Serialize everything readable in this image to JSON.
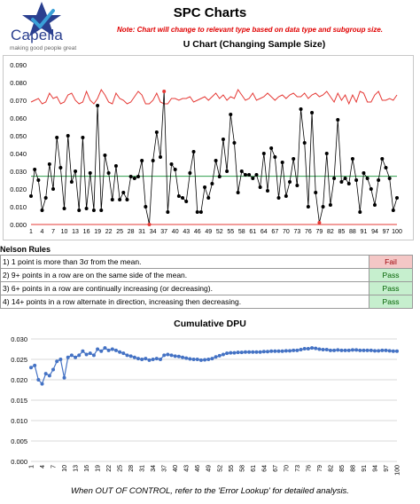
{
  "brand": {
    "name": "Capella",
    "tagline": "making good people great",
    "colors": {
      "star": "#2a3f8f",
      "check": "#3aa0d8"
    }
  },
  "header": {
    "title": "SPC Charts",
    "note": "Note: Chart will change to relevant type based on data type and subgroup size.",
    "chart_title": "U Chart (Changing Sample Size)"
  },
  "colors": {
    "ucl": "#e53935",
    "center": "#2e9e4b",
    "data": "#000000",
    "cumulative": "#4472c4",
    "fail_bg": "#f4c7c6",
    "pass_bg": "#c6efce"
  },
  "nelson": {
    "title": "Nelson Rules",
    "rules": [
      {
        "text": "1) 1 point is more than 3σ from the mean.",
        "result": "Fail"
      },
      {
        "text": "2) 9+ points in a row are on the same side of the mean.",
        "result": "Pass"
      },
      {
        "text": "3) 6+ points in a row are continually increasing (or decreasing).",
        "result": "Pass"
      },
      {
        "text": "4) 14+ points in a row alternate in direction, increasing then decreasing.",
        "result": "Pass"
      }
    ]
  },
  "cumulative_title": "Cumulative DPU",
  "footer": "When OUT OF CONTROL, refer to the 'Error Lookup' for detailed analysis.",
  "chart_data": [
    {
      "type": "line",
      "title": "U Chart (Changing Sample Size)",
      "xlabel": "",
      "ylabel": "",
      "x": [
        1,
        2,
        3,
        4,
        5,
        6,
        7,
        8,
        9,
        10,
        11,
        12,
        13,
        14,
        15,
        16,
        17,
        18,
        19,
        20,
        21,
        22,
        23,
        24,
        25,
        26,
        27,
        28,
        29,
        30,
        31,
        32,
        33,
        34,
        35,
        36,
        37,
        38,
        39,
        40,
        41,
        42,
        43,
        44,
        45,
        46,
        47,
        48,
        49,
        50,
        51,
        52,
        53,
        54,
        55,
        56,
        57,
        58,
        59,
        60,
        61,
        62,
        63,
        64,
        65,
        66,
        67,
        68,
        69,
        70,
        71,
        72,
        73,
        74,
        75,
        76,
        77,
        78,
        79,
        80,
        81,
        82,
        83,
        84,
        85,
        86,
        87,
        88,
        89,
        90,
        91,
        92,
        93,
        94,
        95,
        96,
        97,
        98,
        99,
        100
      ],
      "x_tick_labels": [
        "1",
        "4",
        "7",
        "10",
        "13",
        "16",
        "19",
        "22",
        "25",
        "28",
        "31",
        "34",
        "37",
        "40",
        "43",
        "46",
        "49",
        "52",
        "55",
        "58",
        "61",
        "64",
        "67",
        "70",
        "73",
        "76",
        "79",
        "82",
        "85",
        "88",
        "91",
        "94",
        "97",
        "100"
      ],
      "ylim": [
        0,
        0.09
      ],
      "y_ticks": [
        "0.000",
        "0.010",
        "0.020",
        "0.030",
        "0.040",
        "0.050",
        "0.060",
        "0.070",
        "0.080",
        "0.090"
      ],
      "grid": false,
      "series": [
        {
          "role": "data",
          "marker": "circle",
          "values": [
            0.016,
            0.031,
            0.025,
            0.008,
            0.015,
            0.034,
            0.02,
            0.049,
            0.032,
            0.009,
            0.05,
            0.024,
            0.03,
            0.008,
            0.049,
            0.009,
            0.029,
            0.008,
            0.067,
            0.008,
            0.039,
            0.029,
            0.014,
            0.033,
            0.014,
            0.018,
            0.014,
            0.027,
            0.026,
            0.027,
            0.036,
            0.01,
            0.0,
            0.036,
            0.052,
            0.038,
            0.075,
            0.007,
            0.034,
            0.031,
            0.016,
            0.015,
            0.013,
            0.029,
            0.041,
            0.007,
            0.007,
            0.021,
            0.015,
            0.023,
            0.036,
            0.027,
            0.048,
            0.03,
            0.062,
            0.046,
            0.018,
            0.03,
            0.028,
            0.028,
            0.026,
            0.028,
            0.021,
            0.04,
            0.019,
            0.043,
            0.038,
            0.015,
            0.035,
            0.016,
            0.024,
            0.037,
            0.022,
            0.065,
            0.046,
            0.01,
            0.063,
            0.018,
            0.001,
            0.01,
            0.04,
            0.011,
            0.026,
            0.059,
            0.024,
            0.026,
            0.023,
            0.037,
            0.025,
            0.007,
            0.029,
            0.026,
            0.02,
            0.011,
            0.025,
            0.037,
            0.032,
            0.026,
            0.008,
            0.015
          ]
        },
        {
          "role": "ucl",
          "values": [
            0.069,
            0.07,
            0.071,
            0.068,
            0.069,
            0.074,
            0.071,
            0.072,
            0.068,
            0.069,
            0.073,
            0.074,
            0.07,
            0.068,
            0.069,
            0.075,
            0.07,
            0.068,
            0.071,
            0.076,
            0.073,
            0.069,
            0.068,
            0.074,
            0.071,
            0.07,
            0.068,
            0.069,
            0.072,
            0.075,
            0.073,
            0.068,
            0.068,
            0.07,
            0.074,
            0.069,
            0.068,
            0.068,
            0.071,
            0.071,
            0.07,
            0.071,
            0.071,
            0.072,
            0.069,
            0.07,
            0.071,
            0.072,
            0.07,
            0.072,
            0.074,
            0.071,
            0.073,
            0.07,
            0.072,
            0.071,
            0.076,
            0.073,
            0.07,
            0.071,
            0.074,
            0.07,
            0.071,
            0.072,
            0.074,
            0.072,
            0.07,
            0.072,
            0.073,
            0.071,
            0.073,
            0.074,
            0.072,
            0.072,
            0.074,
            0.071,
            0.073,
            0.074,
            0.072,
            0.073,
            0.075,
            0.072,
            0.069,
            0.074,
            0.07,
            0.073,
            0.068,
            0.073,
            0.069,
            0.075,
            0.074,
            0.069,
            0.069,
            0.073,
            0.075,
            0.07,
            0.07,
            0.071,
            0.07,
            0.073
          ]
        },
        {
          "role": "center",
          "values_constant": 0.0272
        }
      ]
    },
    {
      "type": "line",
      "title": "Cumulative DPU",
      "xlabel": "",
      "ylabel": "",
      "ylim": [
        0,
        0.03
      ],
      "y_ticks": [
        "0.000",
        "0.005",
        "0.010",
        "0.015",
        "0.020",
        "0.025",
        "0.030"
      ],
      "x_tick_labels": [
        "1",
        "4",
        "7",
        "10",
        "13",
        "16",
        "19",
        "22",
        "25",
        "28",
        "31",
        "34",
        "37",
        "40",
        "43",
        "46",
        "49",
        "52",
        "55",
        "58",
        "61",
        "64",
        "67",
        "70",
        "73",
        "76",
        "79",
        "82",
        "85",
        "88",
        "91",
        "94",
        "97",
        "100"
      ],
      "grid": true,
      "series": [
        {
          "name": "",
          "marker": "circle",
          "values": [
            0.023,
            0.0235,
            0.02,
            0.019,
            0.0215,
            0.021,
            0.0225,
            0.0245,
            0.025,
            0.0205,
            0.0255,
            0.026,
            0.0255,
            0.026,
            0.027,
            0.0262,
            0.0265,
            0.026,
            0.0275,
            0.027,
            0.0278,
            0.0272,
            0.0275,
            0.0272,
            0.0268,
            0.0265,
            0.026,
            0.0258,
            0.0255,
            0.0252,
            0.025,
            0.0252,
            0.0248,
            0.025,
            0.0252,
            0.025,
            0.026,
            0.0262,
            0.026,
            0.0258,
            0.0257,
            0.0255,
            0.0253,
            0.0251,
            0.025,
            0.025,
            0.0248,
            0.0249,
            0.025,
            0.0252,
            0.0256,
            0.0259,
            0.0262,
            0.0265,
            0.0266,
            0.0266,
            0.0267,
            0.0267,
            0.0268,
            0.0268,
            0.0268,
            0.0268,
            0.0268,
            0.0269,
            0.0269,
            0.027,
            0.027,
            0.027,
            0.027,
            0.0271,
            0.0271,
            0.0272,
            0.0272,
            0.0274,
            0.0276,
            0.0276,
            0.0278,
            0.0277,
            0.0275,
            0.0274,
            0.0274,
            0.0272,
            0.0272,
            0.0273,
            0.0272,
            0.0272,
            0.0272,
            0.0273,
            0.0273,
            0.0272,
            0.0272,
            0.0272,
            0.0272,
            0.0271,
            0.0271,
            0.0272,
            0.0272,
            0.0271,
            0.027,
            0.027
          ]
        }
      ]
    }
  ]
}
